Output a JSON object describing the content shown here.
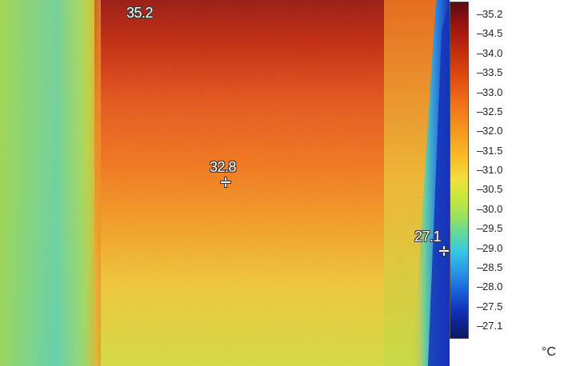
{
  "thermal_image": {
    "hot_spot": {
      "label": "35.2",
      "value": 35.2
    },
    "center_point": {
      "label": "32.8",
      "value": 32.8
    },
    "cold_spot": {
      "label": "27.1",
      "value": 27.1
    }
  },
  "color_scale": {
    "max": 35.2,
    "min": 27.1,
    "unit": "°C",
    "ticks": [
      "35.2",
      "34.5",
      "34.0",
      "33.5",
      "33.0",
      "32.5",
      "32.0",
      "31.5",
      "31.0",
      "30.5",
      "30.0",
      "29.5",
      "29.0",
      "28.5",
      "28.0",
      "27.5",
      "27.1"
    ],
    "colors": {
      "hot": "#5a0b10",
      "warm": "#df4a10",
      "mid": "#f8c028",
      "cool": "#98e060",
      "cold": "#1030b8"
    }
  }
}
